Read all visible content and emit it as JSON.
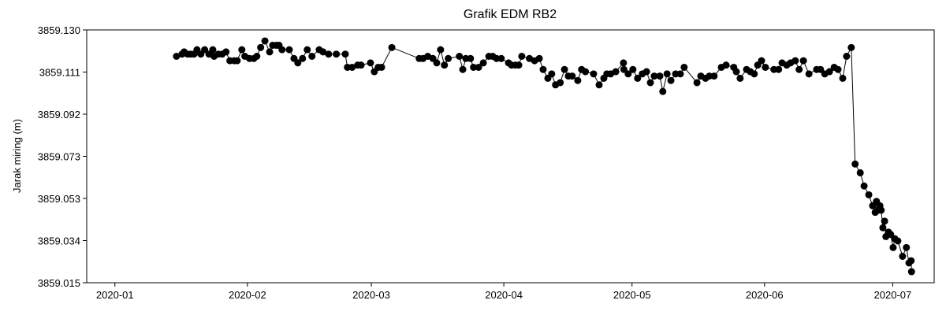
{
  "chart_data": {
    "type": "line",
    "title": "Grafik EDM RB2",
    "y_label": "Jarak miring (m)",
    "color": "#000000",
    "markers": true,
    "xlim": [
      -6.6,
      191.7
    ],
    "ylim": [
      3859.015,
      3859.13
    ],
    "xticks": [
      {
        "value": 0,
        "label": "2020-01"
      },
      {
        "value": 31,
        "label": "2020-02"
      },
      {
        "value": 60,
        "label": "2020-03"
      },
      {
        "value": 91,
        "label": "2020-04"
      },
      {
        "value": 121,
        "label": "2020-05"
      },
      {
        "value": 152,
        "label": "2020-06"
      },
      {
        "value": 182,
        "label": "2020-07"
      }
    ],
    "yticks": [
      3859.015,
      {
        "value": 3859.0341667,
        "label": "3859.034"
      },
      {
        "value": 3859.0533333,
        "label": "3859.053"
      },
      {
        "value": 3859.0725,
        "label": "3859.073"
      },
      {
        "value": 3859.0916667,
        "label": "3859.092"
      },
      {
        "value": 3859.1108333,
        "label": "3859.111"
      },
      {
        "value": 3859.13,
        "label": "3859.130"
      }
    ],
    "x": [
      14.4,
      15.7,
      16.2,
      17.0,
      17.7,
      18.5,
      19.2,
      20.1,
      21.0,
      22.0,
      22.9,
      23.2,
      24.2,
      25.1,
      26.0,
      26.9,
      27.9,
      28.6,
      29.7,
      30.4,
      31.5,
      32.5,
      33.2,
      34.1,
      35.1,
      36.2,
      36.9,
      37.8,
      38.4,
      39.1,
      40.8,
      41.9,
      42.8,
      43.9,
      45.0,
      46.1,
      47.8,
      48.7,
      50.0,
      51.8,
      53.9,
      54.4,
      55.5,
      56.8,
      57.6,
      59.8,
      60.7,
      61.6,
      62.4,
      64.8,
      71.2,
      72.1,
      73.2,
      74.4,
      75.3,
      76.2,
      77.1,
      78.0,
      80.6,
      81.4,
      82.1,
      83.2,
      83.9,
      85.1,
      86.2,
      87.5,
      88.4,
      89.3,
      90.4,
      92.1,
      92.8,
      93.7,
      94.5,
      95.2,
      97.0,
      98.2,
      99.3,
      100.2,
      101.3,
      102.2,
      103.1,
      104.2,
      105.2,
      106.1,
      107.0,
      108.3,
      109.2,
      110.1,
      112.0,
      113.3,
      114.4,
      115.1,
      116.0,
      117.2,
      119.0,
      119.1,
      120.1,
      121.2,
      122.3,
      123.4,
      124.4,
      125.3,
      126.2,
      127.5,
      128.2,
      129.2,
      130.1,
      131.2,
      132.3,
      133.2,
      136.2,
      137.1,
      138.2,
      139.1,
      140.2,
      141.9,
      143.0,
      144.8,
      145.4,
      146.3,
      147.8,
      148.7,
      149.6,
      150.4,
      151.3,
      152.2,
      154.2,
      155.3,
      156.1,
      157.2,
      158.1,
      159.2,
      160.1,
      161.1,
      162.4,
      164.2,
      165.1,
      166.1,
      167.2,
      168.3,
      169.2,
      170.3,
      171.2,
      172.3,
      173.2,
      174.4,
      175.3,
      176.4,
      177.3,
      177.9,
      178.2,
      178.6,
      179.0,
      179.3,
      179.7,
      180.1,
      180.4,
      181.0,
      181.5,
      182.1,
      182.5,
      183.2,
      184.3,
      185.2,
      185.8,
      186.3,
      186.4
    ],
    "values": [
      3859.118,
      3859.119,
      3859.12,
      3859.119,
      3859.119,
      3859.119,
      3859.121,
      3859.119,
      3859.121,
      3859.119,
      3859.121,
      3859.118,
      3859.119,
      3859.119,
      3859.12,
      3859.116,
      3859.116,
      3859.116,
      3859.121,
      3859.118,
      3859.117,
      3859.117,
      3859.118,
      3859.122,
      3859.125,
      3859.12,
      3859.123,
      3859.123,
      3859.123,
      3859.121,
      3859.121,
      3859.117,
      3859.115,
      3859.117,
      3859.121,
      3859.118,
      3859.121,
      3859.12,
      3859.119,
      3859.119,
      3859.119,
      3859.113,
      3859.113,
      3859.114,
      3859.114,
      3859.115,
      3859.111,
      3859.113,
      3859.113,
      3859.122,
      3859.117,
      3859.117,
      3859.118,
      3859.117,
      3859.115,
      3859.121,
      3859.114,
      3859.117,
      3859.118,
      3859.112,
      3859.117,
      3859.117,
      3859.113,
      3859.113,
      3859.115,
      3859.118,
      3859.118,
      3859.117,
      3859.117,
      3859.115,
      3859.114,
      3859.114,
      3859.114,
      3859.118,
      3859.117,
      3859.116,
      3859.117,
      3859.112,
      3859.108,
      3859.11,
      3859.105,
      3859.106,
      3859.112,
      3859.109,
      3859.109,
      3859.107,
      3859.112,
      3859.111,
      3859.11,
      3859.105,
      3859.108,
      3859.11,
      3859.11,
      3859.111,
      3859.115,
      3859.112,
      3859.11,
      3859.112,
      3859.108,
      3859.11,
      3859.111,
      3859.106,
      3859.109,
      3859.109,
      3859.102,
      3859.11,
      3859.107,
      3859.11,
      3859.11,
      3859.113,
      3859.106,
      3859.109,
      3859.108,
      3859.109,
      3859.109,
      3859.113,
      3859.114,
      3859.113,
      3859.111,
      3859.108,
      3859.112,
      3859.111,
      3859.11,
      3859.114,
      3859.116,
      3859.113,
      3859.112,
      3859.112,
      3859.115,
      3859.114,
      3859.115,
      3859.116,
      3859.112,
      3859.116,
      3859.11,
      3859.112,
      3859.112,
      3859.11,
      3859.111,
      3859.113,
      3859.112,
      3859.108,
      3859.118,
      3859.122,
      3859.069,
      3859.065,
      3859.059,
      3859.055,
      3859.05,
      3859.047,
      3859.052,
      3859.048,
      3859.05,
      3859.048,
      3859.04,
      3859.043,
      3859.036,
      3859.038,
      3859.037,
      3859.031,
      3859.035,
      3859.034,
      3859.027,
      3859.031,
      3859.024,
      3859.025,
      3859.02
    ]
  }
}
